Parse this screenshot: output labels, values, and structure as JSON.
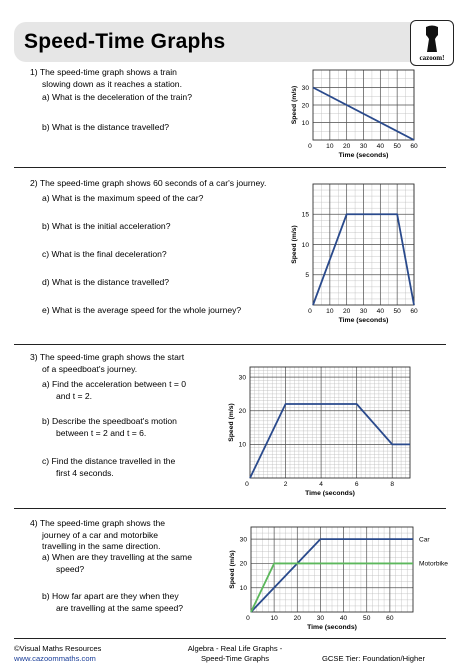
{
  "title": "Speed-Time Graphs",
  "logo": {
    "text": "cazoom!"
  },
  "questions": [
    {
      "lines": [
        "1)  The speed-time graph shows a train",
        "slowing down as it reaches a station."
      ],
      "parts": [
        [
          "a)  What is the deceleration of the train?"
        ],
        [
          "b)  What is the distance travelled?"
        ]
      ]
    },
    {
      "lines": [
        "2)  The speed-time graph shows 60 seconds of a car's journey."
      ],
      "parts": [
        [
          "a)  What is the maximum speed of the car?"
        ],
        [
          "b)  What is the initial acceleration?"
        ],
        [
          "c)  What is the final deceleration?"
        ],
        [
          "d)  What is the distance travelled?"
        ],
        [
          "e)  What is the average speed for the whole journey?"
        ]
      ]
    },
    {
      "lines": [
        "3)  The speed-time graph shows the start",
        "of a speedboat's journey."
      ],
      "parts": [
        [
          "a)  Find the acceleration between t = 0",
          "and t = 2."
        ],
        [
          "b)  Describe the speedboat's motion",
          "between t = 2 and t = 6."
        ],
        [
          "c)  Find the distance travelled in the",
          "first 4 seconds."
        ]
      ]
    },
    {
      "lines": [
        "4)  The speed-time graph shows the",
        "journey of a car and motorbike",
        "travelling in the same direction."
      ],
      "parts": [
        [
          "a)  When are they travelling at the same",
          "speed?"
        ],
        [
          "b)  How far apart are they when they",
          "are travelling at the same speed?"
        ]
      ]
    }
  ],
  "chart_data": [
    {
      "type": "line",
      "xlabel": "Time (seconds)",
      "ylabel": "Speed (m/s)",
      "x_ticks": [
        "10",
        "20",
        "30",
        "40",
        "50",
        "60"
      ],
      "y_ticks": [
        "10",
        "20",
        "30"
      ],
      "origin_label": "0",
      "xlim": [
        0,
        60
      ],
      "ylim": [
        0,
        40
      ],
      "grid": true,
      "series": [
        {
          "x": [
            0,
            60
          ],
          "y": [
            30,
            0
          ],
          "color": "#2a4a8c"
        }
      ]
    },
    {
      "type": "line",
      "xlabel": "Time (seconds)",
      "ylabel": "Speed (m/s)",
      "x_ticks": [
        "10",
        "20",
        "30",
        "40",
        "50",
        "60"
      ],
      "y_ticks": [
        "5",
        "10",
        "15"
      ],
      "origin_label": "0",
      "xlim": [
        0,
        60
      ],
      "ylim": [
        0,
        20
      ],
      "grid": true,
      "series": [
        {
          "x": [
            0,
            20,
            50,
            60
          ],
          "y": [
            0,
            15,
            15,
            0
          ],
          "color": "#2a4a8c"
        }
      ]
    },
    {
      "type": "line",
      "xlabel": "Time (seconds)",
      "ylabel": "Speed (m/s)",
      "x_ticks": [
        "2",
        "4",
        "6",
        "8"
      ],
      "y_ticks": [
        "10",
        "20",
        "30"
      ],
      "origin_label": "0",
      "xlim": [
        0,
        9
      ],
      "ylim": [
        0,
        33
      ],
      "grid": true,
      "series": [
        {
          "x": [
            0,
            2,
            6,
            8,
            9
          ],
          "y": [
            0,
            22,
            22,
            10,
            10
          ],
          "color": "#2a4a8c"
        }
      ]
    },
    {
      "type": "line",
      "xlabel": "Time (seconds)",
      "ylabel": "Speed (m/s)",
      "x_ticks": [
        "10",
        "20",
        "30",
        "40",
        "50",
        "60"
      ],
      "y_ticks": [
        "10",
        "20",
        "30"
      ],
      "origin_label": "0",
      "xlim": [
        0,
        70
      ],
      "ylim": [
        0,
        35
      ],
      "grid": true,
      "series": [
        {
          "name": "Car",
          "x": [
            0,
            30,
            70
          ],
          "y": [
            0,
            30,
            30
          ],
          "color": "#2a4a8c"
        },
        {
          "name": "Motorbike",
          "x": [
            0,
            10,
            70
          ],
          "y": [
            0,
            20,
            20
          ],
          "color": "#5cb85c"
        }
      ]
    }
  ],
  "footer": {
    "left": [
      "©Visual Maths Resources",
      "www.cazoommaths.com"
    ],
    "center": [
      "Algebra - Real Life Graphs -",
      "Speed-Time Graphs"
    ],
    "right": [
      "GCSE Tier: Foundation/Higher"
    ]
  },
  "colors": {
    "line": "#2a4a8c",
    "motorbike": "#5cb85c",
    "title_bar": "#e6e6e6"
  }
}
